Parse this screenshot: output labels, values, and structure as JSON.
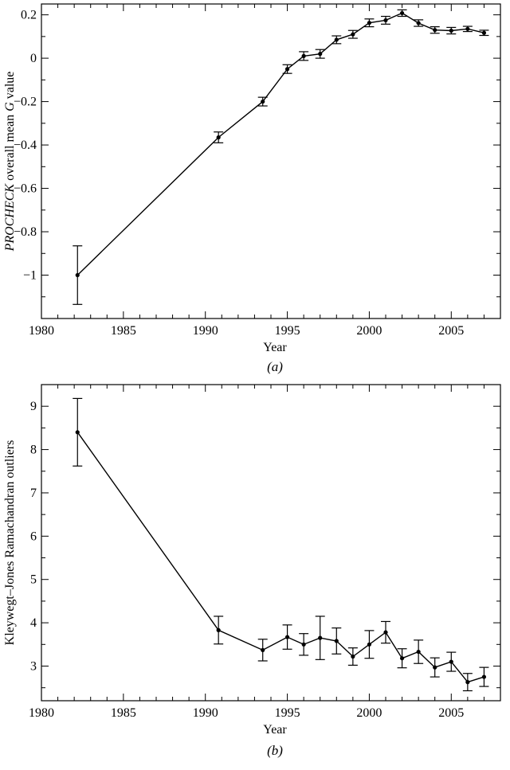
{
  "chart_data": [
    {
      "type": "line",
      "panel_label": "(a)",
      "xlabel": "Year",
      "ylabel_italic": "PROCHECK",
      "ylabel_plain": " overall mean ",
      "ylabel_g": "G",
      "ylabel_tail": " value",
      "xlim": [
        1980,
        2008
      ],
      "ylim": [
        -1.2,
        0.25
      ],
      "xticks": [
        1980,
        1985,
        1990,
        1995,
        2000,
        2005
      ],
      "xtick_labels": [
        "1980",
        "1985",
        "1990",
        "1995",
        "2000",
        "2005"
      ],
      "yticks": [
        -1,
        -0.8,
        -0.6,
        -0.4,
        -0.2,
        0,
        0.2
      ],
      "ytick_labels": [
        "−1",
        "−0.8",
        "−0.6",
        "−0.4",
        "−0.2",
        "0",
        "0.2"
      ],
      "x": [
        1982.2,
        1990.8,
        1993.5,
        1995,
        1996,
        1997,
        1998,
        1999,
        2000,
        2001,
        2002,
        2003,
        2004,
        2005,
        2006,
        2007
      ],
      "y": [
        -1.0,
        -0.365,
        -0.2,
        -0.05,
        0.01,
        0.02,
        0.085,
        0.11,
        0.163,
        0.175,
        0.208,
        0.162,
        0.13,
        0.127,
        0.135,
        0.117
      ],
      "err": [
        0.135,
        0.025,
        0.02,
        0.02,
        0.02,
        0.02,
        0.018,
        0.018,
        0.018,
        0.018,
        0.015,
        0.015,
        0.015,
        0.015,
        0.012,
        0.012
      ]
    },
    {
      "type": "line",
      "panel_label": "(b)",
      "xlabel": "Year",
      "ylabel": "Kleywegt–Jones Ramachandran outliers",
      "xlim": [
        1980,
        2008
      ],
      "ylim": [
        2.2,
        9.5
      ],
      "xticks": [
        1980,
        1985,
        1990,
        1995,
        2000,
        2005
      ],
      "xtick_labels": [
        "1980",
        "1985",
        "1990",
        "1995",
        "2000",
        "2005"
      ],
      "yticks": [
        3,
        4,
        5,
        6,
        7,
        8,
        9
      ],
      "ytick_labels": [
        "3",
        "4",
        "5",
        "6",
        "7",
        "8",
        "9"
      ],
      "x": [
        1982.2,
        1990.8,
        1993.5,
        1995,
        1996,
        1997,
        1998,
        1999,
        2000,
        2001,
        2002,
        2003,
        2004,
        2005,
        2006,
        2007
      ],
      "y": [
        8.4,
        3.83,
        3.37,
        3.67,
        3.5,
        3.65,
        3.58,
        3.22,
        3.5,
        3.78,
        3.18,
        3.33,
        2.97,
        3.1,
        2.63,
        2.75
      ],
      "err": [
        0.78,
        0.32,
        0.25,
        0.28,
        0.25,
        0.5,
        0.3,
        0.2,
        0.32,
        0.25,
        0.22,
        0.27,
        0.22,
        0.22,
        0.2,
        0.22
      ]
    }
  ]
}
